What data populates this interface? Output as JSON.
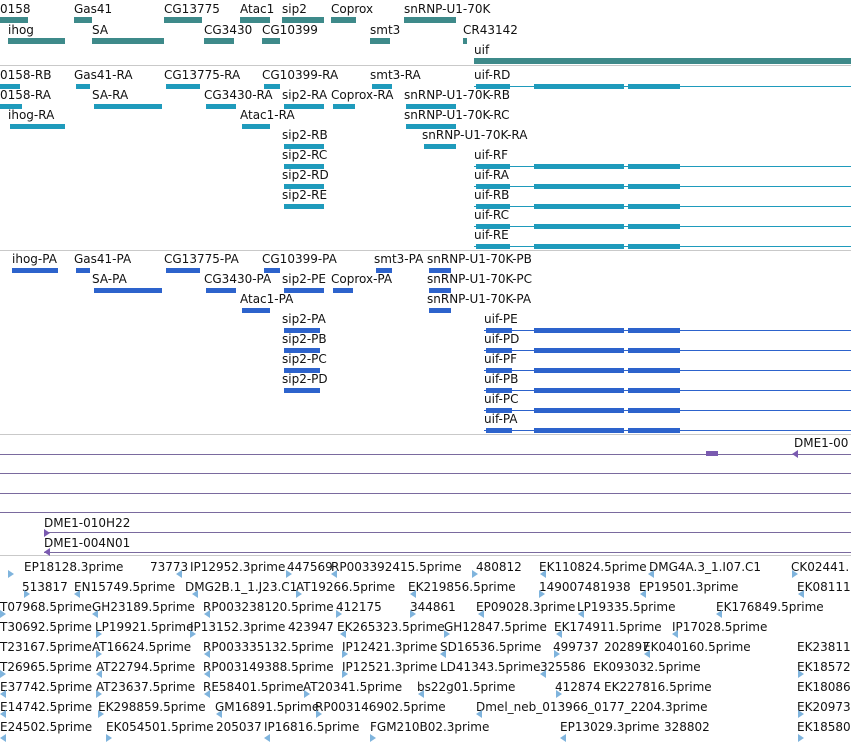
{
  "colors": {
    "gene": "#3e8a8a",
    "transcript": "#1f9bbc",
    "cds": "#2d63cc",
    "alignment": "#7a5ab0",
    "est": "#7fb4dd"
  },
  "genes": [
    {
      "label": "0158"
    },
    {
      "label": "ihog"
    },
    {
      "label": "Gas41"
    },
    {
      "label": "SA"
    },
    {
      "label": "CG13775"
    },
    {
      "label": "CG3430"
    },
    {
      "label": "Atac1"
    },
    {
      "label": "sip2"
    },
    {
      "label": "CG10399"
    },
    {
      "label": "Coprox"
    },
    {
      "label": "smt3"
    },
    {
      "label": "snRNP-U1-70K"
    },
    {
      "label": "CR43142"
    },
    {
      "label": "uif"
    }
  ],
  "transcripts": [
    {
      "label": "0158-RB"
    },
    {
      "label": "Gas41-RA"
    },
    {
      "label": "CG13775-RA"
    },
    {
      "label": "CG10399-RA"
    },
    {
      "label": "smt3-RA"
    },
    {
      "label": "uif-RD"
    },
    {
      "label": "0158-RA"
    },
    {
      "label": "SA-RA"
    },
    {
      "label": "CG3430-RA"
    },
    {
      "label": "sip2-RA"
    },
    {
      "label": "Coprox-RA"
    },
    {
      "label": "snRNP-U1-70K-RB"
    },
    {
      "label": "ihog-RA"
    },
    {
      "label": "Atac1-RA"
    },
    {
      "label": "snRNP-U1-70K-RC"
    },
    {
      "label": "sip2-RB"
    },
    {
      "label": "snRNP-U1-70K-RA"
    },
    {
      "label": "sip2-RC"
    },
    {
      "label": "uif-RF"
    },
    {
      "label": "sip2-RD"
    },
    {
      "label": "uif-RA"
    },
    {
      "label": "sip2-RE"
    },
    {
      "label": "uif-RB"
    },
    {
      "label": "uif-RC"
    },
    {
      "label": "uif-RE"
    }
  ],
  "proteins": [
    {
      "label": "ihog-PA"
    },
    {
      "label": "Gas41-PA"
    },
    {
      "label": "CG13775-PA"
    },
    {
      "label": "CG10399-PA"
    },
    {
      "label": "smt3-PA"
    },
    {
      "label": "snRNP-U1-70K-PB"
    },
    {
      "label": "SA-PA"
    },
    {
      "label": "CG3430-PA"
    },
    {
      "label": "sip2-PE"
    },
    {
      "label": "Coprox-PA"
    },
    {
      "label": "snRNP-U1-70K-PC"
    },
    {
      "label": "Atac1-PA"
    },
    {
      "label": "snRNP-U1-70K-PA"
    },
    {
      "label": "sip2-PA"
    },
    {
      "label": "uif-PE"
    },
    {
      "label": "sip2-PB"
    },
    {
      "label": "uif-PD"
    },
    {
      "label": "sip2-PC"
    },
    {
      "label": "uif-PF"
    },
    {
      "label": "sip2-PD"
    },
    {
      "label": "uif-PB"
    },
    {
      "label": "uif-PC"
    },
    {
      "label": "uif-PA"
    }
  ],
  "alignments": [
    {
      "label": "DME1-00"
    },
    {
      "label": "DME1-010H22"
    },
    {
      "label": "DME1-004N01"
    }
  ],
  "ests": [
    {
      "label": "EP18128.3prime"
    },
    {
      "label": "73773"
    },
    {
      "label": "IP12952.3prime"
    },
    {
      "label": "447569"
    },
    {
      "label": "RP003392415.5prime"
    },
    {
      "label": "480812"
    },
    {
      "label": "EK110824.5prime"
    },
    {
      "label": "DMG4A.3_1.I07.C1"
    },
    {
      "label": "CK02441."
    },
    {
      "label": "513817"
    },
    {
      "label": "EN15749.5prime"
    },
    {
      "label": "DMG2B.1_1.J23.C1"
    },
    {
      "label": "AT19266.5prime"
    },
    {
      "label": "EK219856.5prime"
    },
    {
      "label": "149007481938"
    },
    {
      "label": "EP19501.3prime"
    },
    {
      "label": "EK08111"
    },
    {
      "label": "T07968.5prime"
    },
    {
      "label": "GH23189.5prime"
    },
    {
      "label": "RP003238120.5prime"
    },
    {
      "label": "412175"
    },
    {
      "label": "344861"
    },
    {
      "label": "EP09028.3prime"
    },
    {
      "label": "LP19335.5prime"
    },
    {
      "label": "EK176849.5prime"
    },
    {
      "label": "T30692.5prime"
    },
    {
      "label": "LP19921.5prime"
    },
    {
      "label": "IP13152.3prime"
    },
    {
      "label": "423947"
    },
    {
      "label": "EK265323.5prime"
    },
    {
      "label": "GH12847.5prime"
    },
    {
      "label": "EK174911.5prime"
    },
    {
      "label": "IP17028.5prime"
    },
    {
      "label": "T23167.5prime"
    },
    {
      "label": "AT16624.5prime"
    },
    {
      "label": "RP003335132.5prime"
    },
    {
      "label": "IP12421.3prime"
    },
    {
      "label": "SD16536.5prime"
    },
    {
      "label": "499737"
    },
    {
      "label": "202897"
    },
    {
      "label": "EK040160.5prime"
    },
    {
      "label": "EK23811"
    },
    {
      "label": "T26965.5prime"
    },
    {
      "label": "AT22794.5prime"
    },
    {
      "label": "RP003149388.5prime"
    },
    {
      "label": "IP12521.3prime"
    },
    {
      "label": "LD41343.5prime"
    },
    {
      "label": "325586"
    },
    {
      "label": "EK093032.5prime"
    },
    {
      "label": "EK18572"
    },
    {
      "label": "E37742.5prime"
    },
    {
      "label": "AT23637.5prime"
    },
    {
      "label": "RE58401.5prime"
    },
    {
      "label": "AT20341.5prime"
    },
    {
      "label": "bs22g01.5prime"
    },
    {
      "label": "412874"
    },
    {
      "label": "EK227816.5prime"
    },
    {
      "label": "EK18086"
    },
    {
      "label": "E14742.5prime"
    },
    {
      "label": "EK298859.5prime"
    },
    {
      "label": "GM16891.5prime"
    },
    {
      "label": "RP003146902.5prime"
    },
    {
      "label": "Dmel_neb_013966_0177_2204.3prime"
    },
    {
      "label": "EK20973"
    },
    {
      "label": "E24502.5prime"
    },
    {
      "label": "EK054501.5prime"
    },
    {
      "label": "205037"
    },
    {
      "label": "IP16816.5prime"
    },
    {
      "label": "FGM210B02.3prime"
    },
    {
      "label": "EP13029.3prime"
    },
    {
      "label": "328802"
    },
    {
      "label": "EK18580"
    }
  ]
}
